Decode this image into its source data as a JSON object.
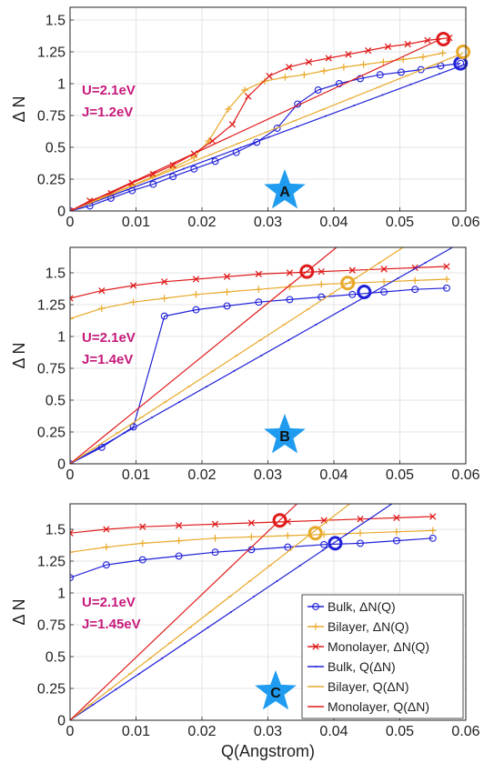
{
  "colors": {
    "bulk": "#2020d8",
    "bilayer": "#e8a92a",
    "monolayer": "#e01b1b",
    "param_text": "#c6197a",
    "star": "#1f9cf0"
  },
  "chart_data": [
    {
      "type": "line",
      "panel_label": "A",
      "params": [
        "U=2.1eV",
        "J=1.2eV"
      ],
      "xlabel": "",
      "ylabel": "Δ N",
      "xlim": [
        0,
        0.06
      ],
      "ylim": [
        0,
        1.6
      ],
      "xticks": [
        "0",
        "0.01",
        "0.02",
        "0.03",
        "0.04",
        "0.05",
        "0.06"
      ],
      "yticks": [
        "0",
        "0.25",
        "0.5",
        "0.75",
        "1",
        "1.25",
        "1.5"
      ],
      "grid": true,
      "series": [
        {
          "key": "bulk_dn",
          "x": [
            0,
            0.003,
            0.0062,
            0.0094,
            0.0126,
            0.0156,
            0.0188,
            0.022,
            0.0252,
            0.0283,
            0.0314,
            0.0345,
            0.0376,
            0.0408,
            0.044,
            0.047,
            0.0502,
            0.0532,
            0.0562,
            0.0592
          ],
          "y": [
            0,
            0.04,
            0.1,
            0.16,
            0.21,
            0.27,
            0.33,
            0.39,
            0.46,
            0.54,
            0.65,
            0.84,
            0.95,
            1.0,
            1.04,
            1.07,
            1.09,
            1.11,
            1.14,
            1.16
          ]
        },
        {
          "key": "bilayer_dn",
          "x": [
            0,
            0.003,
            0.0062,
            0.0094,
            0.0126,
            0.0156,
            0.0188,
            0.021,
            0.024,
            0.0265,
            0.0295,
            0.0326,
            0.0355,
            0.0385,
            0.0415,
            0.0445,
            0.0475,
            0.0505,
            0.0535,
            0.0565
          ],
          "y": [
            0,
            0.07,
            0.13,
            0.2,
            0.27,
            0.34,
            0.42,
            0.55,
            0.8,
            0.95,
            1.02,
            1.05,
            1.07,
            1.1,
            1.13,
            1.15,
            1.17,
            1.19,
            1.21,
            1.24
          ]
        },
        {
          "key": "monolayer_dn",
          "x": [
            0,
            0.003,
            0.0062,
            0.0094,
            0.0126,
            0.0156,
            0.0188,
            0.0216,
            0.0246,
            0.027,
            0.0302,
            0.0332,
            0.0362,
            0.0392,
            0.0422,
            0.0452,
            0.0482,
            0.0512,
            0.0542,
            0.0575
          ],
          "y": [
            0,
            0.08,
            0.14,
            0.22,
            0.29,
            0.36,
            0.45,
            0.55,
            0.68,
            0.9,
            1.06,
            1.13,
            1.17,
            1.2,
            1.23,
            1.26,
            1.29,
            1.31,
            1.34,
            1.36
          ]
        },
        {
          "key": "bulk_qn",
          "x": [
            0,
            0.0603
          ],
          "y": [
            0,
            1.16
          ]
        },
        {
          "key": "bilayer_qn",
          "x": [
            0,
            0.0596
          ],
          "y": [
            0,
            1.24
          ]
        },
        {
          "key": "monolayer_qn",
          "x": [
            0,
            0.0562
          ],
          "y": [
            0,
            1.35
          ]
        }
      ],
      "markers": [
        {
          "color_key": "bulk",
          "x": 0.0592,
          "y": 1.16
        },
        {
          "color_key": "bilayer",
          "x": 0.0596,
          "y": 1.25
        },
        {
          "color_key": "monolayer",
          "x": 0.0566,
          "y": 1.35
        }
      ]
    },
    {
      "type": "line",
      "panel_label": "B",
      "params": [
        "U=2.1eV",
        "J=1.4eV"
      ],
      "xlabel": "",
      "ylabel": "Δ N",
      "xlim": [
        0,
        0.06
      ],
      "ylim": [
        0,
        1.7
      ],
      "xticks": [
        "0",
        "0.01",
        "0.02",
        "0.03",
        "0.04",
        "0.05",
        "0.06"
      ],
      "yticks": [
        "0",
        "0.25",
        "0.5",
        "0.75",
        "1",
        "1.25",
        "1.5"
      ],
      "grid": true,
      "series": [
        {
          "key": "bulk_dn",
          "x": [
            0,
            0.0048,
            0.0096,
            0.0143,
            0.0191,
            0.0238,
            0.0286,
            0.0333,
            0.0381,
            0.0428,
            0.0476,
            0.0523,
            0.0571
          ],
          "y": [
            0,
            0.13,
            0.29,
            1.16,
            1.21,
            1.24,
            1.27,
            1.29,
            1.31,
            1.33,
            1.35,
            1.37,
            1.38
          ]
        },
        {
          "key": "bilayer_dn",
          "x": [
            0,
            0.0048,
            0.0096,
            0.0143,
            0.0191,
            0.0238,
            0.0286,
            0.0333,
            0.0381,
            0.0428,
            0.0476,
            0.0523,
            0.0571
          ],
          "y": [
            1.14,
            1.22,
            1.27,
            1.3,
            1.33,
            1.35,
            1.37,
            1.39,
            1.41,
            1.42,
            1.43,
            1.44,
            1.45
          ]
        },
        {
          "key": "monolayer_dn",
          "x": [
            0,
            0.0048,
            0.0096,
            0.0143,
            0.0191,
            0.0238,
            0.0286,
            0.0333,
            0.0381,
            0.0428,
            0.0476,
            0.0523,
            0.0571
          ],
          "y": [
            1.3,
            1.36,
            1.4,
            1.43,
            1.45,
            1.47,
            1.49,
            1.5,
            1.51,
            1.52,
            1.53,
            1.54,
            1.55
          ]
        },
        {
          "key": "bulk_qn",
          "x": [
            0,
            0.058
          ],
          "y": [
            0,
            1.7
          ]
        },
        {
          "key": "bilayer_qn",
          "x": [
            0,
            0.0505
          ],
          "y": [
            0,
            1.7
          ]
        },
        {
          "key": "monolayer_qn",
          "x": [
            0,
            0.0404
          ],
          "y": [
            0,
            1.7
          ]
        }
      ],
      "markers": [
        {
          "color_key": "bulk",
          "x": 0.0446,
          "y": 1.35
        },
        {
          "color_key": "bilayer",
          "x": 0.0421,
          "y": 1.42
        },
        {
          "color_key": "monolayer",
          "x": 0.0359,
          "y": 1.51
        }
      ]
    },
    {
      "type": "line",
      "panel_label": "C",
      "params": [
        "U=2.1eV",
        "J=1.45eV"
      ],
      "xlabel": "Q(Angstrom)",
      "ylabel": "Δ N",
      "xlim": [
        0,
        0.06
      ],
      "ylim": [
        0,
        1.7
      ],
      "xticks": [
        "0",
        "0.01",
        "0.02",
        "0.03",
        "0.04",
        "0.05",
        "0.06"
      ],
      "yticks": [
        "0",
        "0.25",
        "0.5",
        "0.75",
        "1",
        "1.25",
        "1.5"
      ],
      "grid": true,
      "legend_position": "bottom-right",
      "legend": [
        {
          "key": "bulk_dn",
          "label": "Bulk, ΔN(Q)"
        },
        {
          "key": "bilayer_dn",
          "label": "Bilayer, ΔN(Q)"
        },
        {
          "key": "monolayer_dn",
          "label": "Monolayer, ΔN(Q)"
        },
        {
          "key": "bulk_qn",
          "label": "Bulk, Q(ΔN)"
        },
        {
          "key": "bilayer_qn",
          "label": "Bilayer, Q(ΔN)"
        },
        {
          "key": "monolayer_qn",
          "label": "Monolayer, Q(ΔN)"
        }
      ],
      "series": [
        {
          "key": "bulk_dn",
          "x": [
            0,
            0.0055,
            0.011,
            0.0165,
            0.022,
            0.0275,
            0.033,
            0.0385,
            0.044,
            0.0495,
            0.055
          ],
          "y": [
            1.12,
            1.22,
            1.26,
            1.29,
            1.32,
            1.34,
            1.36,
            1.38,
            1.39,
            1.41,
            1.43
          ]
        },
        {
          "key": "bilayer_dn",
          "x": [
            0,
            0.0055,
            0.011,
            0.0165,
            0.022,
            0.0275,
            0.033,
            0.0385,
            0.044,
            0.0495,
            0.055
          ],
          "y": [
            1.32,
            1.36,
            1.39,
            1.41,
            1.43,
            1.44,
            1.45,
            1.46,
            1.47,
            1.48,
            1.49
          ]
        },
        {
          "key": "monolayer_dn",
          "x": [
            0,
            0.0055,
            0.011,
            0.0165,
            0.022,
            0.0275,
            0.033,
            0.0385,
            0.044,
            0.0495,
            0.055
          ],
          "y": [
            1.47,
            1.5,
            1.52,
            1.53,
            1.54,
            1.55,
            1.56,
            1.57,
            1.58,
            1.59,
            1.6
          ]
        },
        {
          "key": "bulk_qn",
          "x": [
            0,
            0.0488
          ],
          "y": [
            0,
            1.7
          ]
        },
        {
          "key": "bilayer_qn",
          "x": [
            0,
            0.0424
          ],
          "y": [
            0,
            1.7
          ]
        },
        {
          "key": "monolayer_qn",
          "x": [
            0,
            0.0344
          ],
          "y": [
            0,
            1.7
          ]
        }
      ],
      "markers": [
        {
          "color_key": "bulk",
          "x": 0.0402,
          "y": 1.39
        },
        {
          "color_key": "bilayer",
          "x": 0.0372,
          "y": 1.47
        },
        {
          "color_key": "monolayer",
          "x": 0.0318,
          "y": 1.57
        }
      ]
    }
  ]
}
